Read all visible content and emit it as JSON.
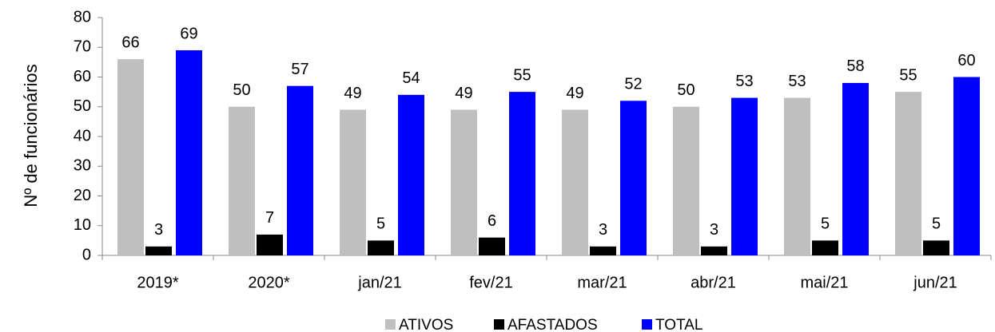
{
  "chart_data": {
    "type": "bar",
    "y_label": "Nº de funcionários",
    "categories": [
      "2019*",
      "2020*",
      "jan/21",
      "fev/21",
      "mar/21",
      "abr/21",
      "mai/21",
      "jun/21"
    ],
    "series": [
      {
        "name": "ATIVOS",
        "color": "#bfbfbf",
        "values": [
          66,
          50,
          49,
          49,
          49,
          50,
          53,
          55
        ]
      },
      {
        "name": "AFASTADOS",
        "color": "#000000",
        "values": [
          3,
          7,
          5,
          6,
          3,
          3,
          5,
          5
        ]
      },
      {
        "name": "TOTAL",
        "color": "#0000ff",
        "values": [
          69,
          57,
          54,
          55,
          52,
          53,
          58,
          60
        ]
      }
    ],
    "ylim": [
      0,
      80
    ],
    "yticks": [
      0,
      10,
      20,
      30,
      40,
      50,
      60,
      70,
      80
    ],
    "grid": false,
    "legend": "bottom"
  }
}
